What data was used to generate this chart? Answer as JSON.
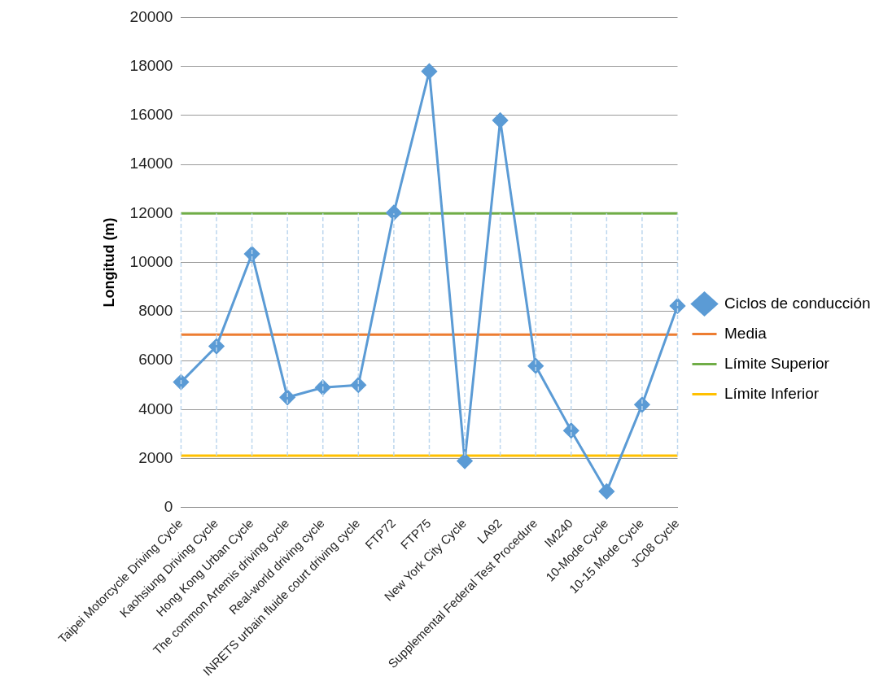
{
  "chart_data": {
    "type": "line",
    "ylabel": "Longitud (m)",
    "categories": [
      "Taipei Motorcycle Driving Cycle",
      "Kaohsiung Driving Cycle",
      "Hong Kong Urban Cycle",
      "The common Artemis driving cycle",
      "Real-world driving cycle",
      "INRETS urbain fluide court driving cycle",
      "FTP72",
      "FTP75",
      "New York City Cycle",
      "LA92",
      "Supplemental Federal Test Procedure",
      "IM240",
      "10-Mode Cycle",
      "10-15 Mode Cycle",
      "JC08 Cycle"
    ],
    "series": [
      {
        "name": "Ciclos de conducción",
        "color": "#5b9bd5",
        "marker": "diamond",
        "values": [
          5120,
          6580,
          10350,
          4500,
          4900,
          5000,
          12030,
          17800,
          1900,
          15800,
          5780,
          3140,
          660,
          4200,
          8230
        ]
      },
      {
        "name": "Media",
        "color": "#ed7d31",
        "marker": "none",
        "values": [
          7060,
          7060,
          7060,
          7060,
          7060,
          7060,
          7060,
          7060,
          7060,
          7060,
          7060,
          7060,
          7060,
          7060,
          7060
        ],
        "errors": [
          4940,
          4940,
          4940,
          4940,
          4940,
          4940,
          4940,
          4940,
          4940,
          4940,
          4940,
          4940,
          4940,
          4940,
          4940
        ]
      },
      {
        "name": "Límite Superior",
        "color": "#70ad47",
        "marker": "none",
        "values": [
          12000,
          12000,
          12000,
          12000,
          12000,
          12000,
          12000,
          12000,
          12000,
          12000,
          12000,
          12000,
          12000,
          12000,
          12000
        ]
      },
      {
        "name": "Límite Inferior",
        "color": "#ffc000",
        "marker": "none",
        "values": [
          2120,
          2120,
          2120,
          2120,
          2120,
          2120,
          2120,
          2120,
          2120,
          2120,
          2120,
          2120,
          2120,
          2120,
          2120
        ]
      }
    ],
    "ylim": [
      0,
      20000
    ],
    "yticks": [
      0,
      2000,
      4000,
      6000,
      8000,
      10000,
      12000,
      14000,
      16000,
      18000,
      20000
    ],
    "grid": "y",
    "legend": "right"
  }
}
